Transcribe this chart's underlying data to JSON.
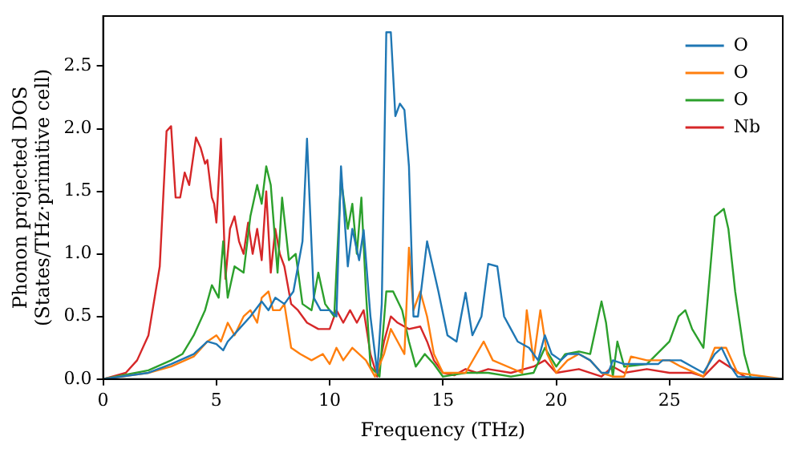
{
  "chart_data": {
    "type": "line",
    "xlabel": "Frequency (THz)",
    "ylabel": "Phonon projected DOS\n(States/THz·primitive cell)",
    "xlim": [
      0,
      30
    ],
    "xticks": [
      0,
      5,
      10,
      15,
      20,
      25
    ],
    "ylim": [
      0,
      2.9
    ],
    "yticks": [
      {
        "value": 0,
        "label": "0.0"
      },
      {
        "value": 0.5,
        "label": "0.5"
      },
      {
        "value": 1,
        "label": "1.0"
      },
      {
        "value": 1.5,
        "label": "1.5"
      },
      {
        "value": 2,
        "label": "2.0"
      },
      {
        "value": 2.5,
        "label": "2.5"
      }
    ],
    "legend": "top right",
    "marker": "none",
    "line_style": "solid",
    "grid": false,
    "series": [
      {
        "name": "O",
        "color": "#1f77b4",
        "x": [
          0,
          2,
          3,
          4,
          4.6,
          5,
          5.3,
          5.5,
          6,
          6.5,
          7,
          7.3,
          7.6,
          8,
          8.4,
          8.8,
          9,
          9.3,
          9.6,
          10,
          10.3,
          10.5,
          10.8,
          11,
          11.3,
          11.5,
          11.8,
          12.1,
          12.3,
          12.5,
          12.7,
          12.9,
          13.1,
          13.3,
          13.5,
          13.7,
          13.9,
          14.3,
          14.8,
          15.2,
          15.6,
          15.8,
          16,
          16.3,
          16.7,
          17,
          17.4,
          17.7,
          18,
          18.3,
          18.8,
          19.2,
          19.5,
          19.8,
          20.2,
          20.5,
          21,
          21.5,
          22,
          22.3,
          22.5,
          23,
          24.5,
          24.7,
          25.5,
          26,
          26.5,
          27,
          27.3,
          27.7,
          28,
          30
        ],
        "values": [
          0,
          0.05,
          0.12,
          0.2,
          0.3,
          0.28,
          0.23,
          0.3,
          0.4,
          0.5,
          0.62,
          0.55,
          0.65,
          0.6,
          0.7,
          1.1,
          1.92,
          0.65,
          0.55,
          0.55,
          0.5,
          1.7,
          0.9,
          1.2,
          0.95,
          1.19,
          0.5,
          0.05,
          0.6,
          2.77,
          2.77,
          2.1,
          2.2,
          2.15,
          1.7,
          0.5,
          0.5,
          1.1,
          0.7,
          0.35,
          0.3,
          0.5,
          0.69,
          0.35,
          0.5,
          0.92,
          0.9,
          0.5,
          0.4,
          0.3,
          0.25,
          0.15,
          0.35,
          0.2,
          0.15,
          0.2,
          0.2,
          0.15,
          0.05,
          0.05,
          0.15,
          0.12,
          0.12,
          0.15,
          0.15,
          0.1,
          0.05,
          0.2,
          0.25,
          0.1,
          0.02,
          0
        ]
      },
      {
        "name": "O",
        "color": "#ff7f0e",
        "x": [
          0,
          2,
          3,
          4,
          4.6,
          5,
          5.2,
          5.5,
          5.8,
          6.2,
          6.5,
          6.8,
          7,
          7.3,
          7.5,
          7.8,
          8,
          8.3,
          8.7,
          9.2,
          9.7,
          10,
          10.3,
          10.6,
          11,
          11.3,
          11.6,
          12,
          12.4,
          12.7,
          13,
          13.3,
          13.5,
          13.7,
          14,
          14.3,
          14.6,
          15,
          16,
          16.8,
          17.2,
          18.5,
          18.7,
          19,
          19.3,
          19.6,
          20,
          20.5,
          21,
          21.5,
          22,
          22.5,
          23,
          23.3,
          24,
          25,
          25.5,
          26.5,
          27,
          27.5,
          28,
          30
        ],
        "values": [
          0,
          0.05,
          0.1,
          0.18,
          0.3,
          0.35,
          0.3,
          0.45,
          0.35,
          0.5,
          0.55,
          0.45,
          0.65,
          0.7,
          0.55,
          0.55,
          0.6,
          0.25,
          0.2,
          0.15,
          0.2,
          0.12,
          0.25,
          0.15,
          0.25,
          0.2,
          0.15,
          0.02,
          0.2,
          0.4,
          0.3,
          0.2,
          1.05,
          0.55,
          0.7,
          0.5,
          0.2,
          0.05,
          0.05,
          0.3,
          0.15,
          0.05,
          0.55,
          0.15,
          0.55,
          0.2,
          0.05,
          0.15,
          0.2,
          0.15,
          0.05,
          0.02,
          0.02,
          0.18,
          0.15,
          0.15,
          0.1,
          0.02,
          0.25,
          0.25,
          0.05,
          0
        ]
      },
      {
        "name": "O",
        "color": "#2ca02c",
        "x": [
          0,
          2,
          3,
          3.5,
          4,
          4.5,
          4.8,
          5.1,
          5.3,
          5.5,
          5.8,
          6.2,
          6.5,
          6.8,
          7,
          7.2,
          7.4,
          7.7,
          7.9,
          8.2,
          8.5,
          8.8,
          9.2,
          9.5,
          9.8,
          10.2,
          10.5,
          10.8,
          11,
          11.2,
          11.4,
          11.6,
          11.8,
          12.2,
          12.5,
          12.8,
          13.2,
          13.5,
          13.8,
          14.2,
          14.6,
          15,
          16,
          17,
          18,
          19,
          19.5,
          20,
          20.4,
          21,
          21.5,
          22,
          22.2,
          22.5,
          22.7,
          23,
          24,
          25,
          25.4,
          25.7,
          26,
          26.5,
          27,
          27.4,
          27.6,
          27.9,
          28.3,
          28.6,
          30
        ],
        "values": [
          0,
          0.07,
          0.15,
          0.2,
          0.35,
          0.55,
          0.75,
          0.65,
          1.1,
          0.65,
          0.9,
          0.85,
          1.3,
          1.55,
          1.4,
          1.7,
          1.55,
          0.85,
          1.45,
          0.95,
          1,
          0.6,
          0.55,
          0.85,
          0.6,
          0.5,
          1.6,
          1.2,
          1.4,
          1,
          1.45,
          0.7,
          0.1,
          0.02,
          0.7,
          0.7,
          0.55,
          0.3,
          0.1,
          0.2,
          0.12,
          0.02,
          0.05,
          0.05,
          0.02,
          0.05,
          0.25,
          0.1,
          0.2,
          0.22,
          0.2,
          0.62,
          0.45,
          0.02,
          0.3,
          0.1,
          0.12,
          0.3,
          0.5,
          0.55,
          0.4,
          0.25,
          1.3,
          1.36,
          1.2,
          0.7,
          0.2,
          0,
          0
        ]
      },
      {
        "name": "Nb",
        "color": "#d62728",
        "x": [
          0,
          1,
          1.5,
          2,
          2.5,
          2.8,
          3,
          3.2,
          3.4,
          3.6,
          3.8,
          4.1,
          4.3,
          4.5,
          4.6,
          4.8,
          4.9,
          5,
          5.2,
          5.4,
          5.6,
          5.8,
          6,
          6.2,
          6.4,
          6.6,
          6.8,
          7,
          7.2,
          7.4,
          7.6,
          7.8,
          8,
          8.3,
          8.6,
          9,
          9.5,
          10,
          10.3,
          10.6,
          10.9,
          11.2,
          11.5,
          11.8,
          12.1,
          12.4,
          12.7,
          13,
          13.5,
          14,
          14.3,
          14.6,
          15,
          15.5,
          16,
          16.5,
          17,
          18,
          19,
          19.5,
          20,
          21,
          22,
          22.5,
          23,
          24,
          25,
          26,
          26.5,
          27.2,
          27.8,
          28.5,
          30
        ],
        "values": [
          0,
          0.05,
          0.15,
          0.35,
          0.9,
          1.98,
          2.02,
          1.45,
          1.45,
          1.65,
          1.55,
          1.93,
          1.85,
          1.72,
          1.75,
          1.45,
          1.4,
          1.25,
          1.92,
          0.8,
          1.2,
          1.3,
          1.1,
          1,
          1.25,
          1,
          1.2,
          0.95,
          1.5,
          0.85,
          1.2,
          1,
          0.9,
          0.6,
          0.55,
          0.45,
          0.4,
          0.4,
          0.55,
          0.45,
          0.55,
          0.45,
          0.55,
          0.2,
          0.02,
          0.3,
          0.5,
          0.45,
          0.4,
          0.42,
          0.3,
          0.15,
          0.05,
          0.03,
          0.08,
          0.05,
          0.08,
          0.05,
          0.1,
          0.15,
          0.05,
          0.08,
          0.02,
          0.1,
          0.05,
          0.08,
          0.05,
          0.05,
          0.02,
          0.15,
          0.08,
          0,
          0
        ]
      }
    ]
  }
}
